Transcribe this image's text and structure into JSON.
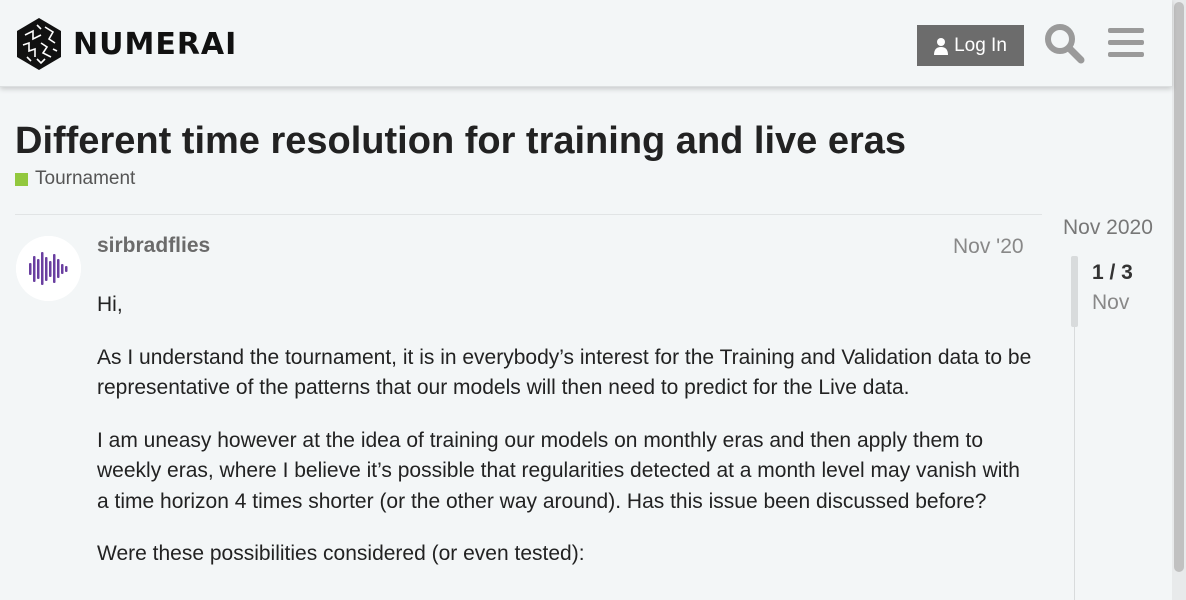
{
  "header": {
    "brand": "NUMERAI",
    "login_label": "Log In"
  },
  "topic": {
    "title": "Different time resolution for training and live eras",
    "category": "Tournament",
    "category_color": "#92c83e"
  },
  "post": {
    "username": "sirbradflies",
    "date": "Nov '20",
    "paragraphs": [
      "Hi,",
      "As I understand the tournament, it is in everybody’s interest for the Training and Validation data to be representative of the patterns that our models will then need to predict for the Live data.",
      "I am uneasy however at the idea of training our models on monthly eras and then apply them to weekly eras, where I believe it’s possible that regularities detected at a month level may vanish with a time horizon 4 times shorter (or the other way around). Has this issue been discussed before?",
      "Were these possibilities considered (or even tested):"
    ]
  },
  "timeline": {
    "top_label": "Nov 2020",
    "count": "1 / 3",
    "month": "Nov"
  },
  "colors": {
    "accent_purple": "#6a3fa0",
    "button_gray": "#6c6c6c"
  }
}
